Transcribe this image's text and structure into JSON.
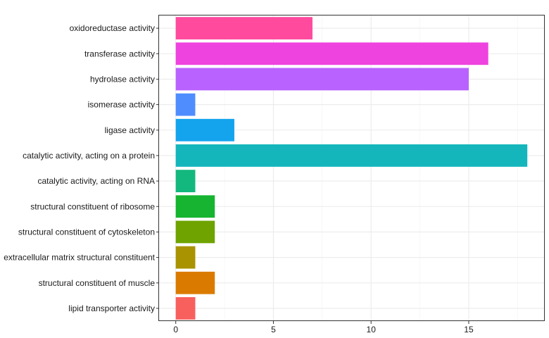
{
  "chart_data": {
    "type": "bar",
    "orientation": "horizontal",
    "title": "",
    "xlabel": "",
    "ylabel": "",
    "xlim": [
      0,
      18.9
    ],
    "xticks": [
      0,
      5,
      10,
      15
    ],
    "grid": true,
    "legend": "none",
    "categories": [
      "oxidoreductase activity",
      "transferase activity",
      "hydrolase activity",
      "isomerase activity",
      "ligase activity",
      "catalytic activity, acting on a protein",
      "catalytic activity, acting on RNA",
      "structural constituent of ribosome",
      "structural constituent of cytoskeleton",
      "extracellular matrix structural constituent",
      "structural constituent of muscle",
      "lipid transporter activity"
    ],
    "values": [
      7,
      16,
      15,
      1,
      3,
      18,
      1,
      2,
      2,
      1,
      2,
      1
    ],
    "colors": [
      "#FF4A9E",
      "#EF43DF",
      "#B962FF",
      "#4F8DFF",
      "#14A4EE",
      "#14B6BB",
      "#13B87E",
      "#16B430",
      "#6EA300",
      "#A99300",
      "#DA7B00",
      "#F8605E"
    ]
  }
}
